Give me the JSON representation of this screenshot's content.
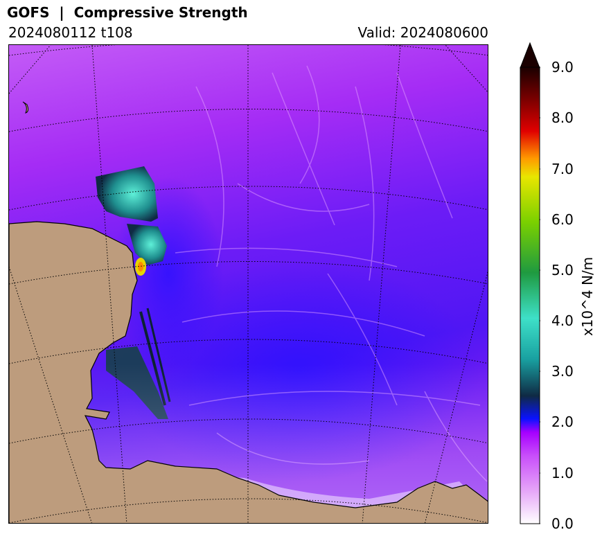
{
  "title": "GOFS  |  Compressive Strength",
  "run": "2024080112 t108",
  "valid": "Valid: 2024080600",
  "colorbar": {
    "label": "x10^4 N/m",
    "ticks": [
      "9.0",
      "8.0",
      "7.0",
      "6.0",
      "5.0",
      "4.0",
      "3.0",
      "2.0",
      "1.0",
      "0.0"
    ],
    "colors": [
      "#ffffff",
      "#e6a8f8",
      "#c84dfa",
      "#a600ff",
      "#0a12ff",
      "#0f2a44",
      "#19a0a0",
      "#3ee0c8",
      "#1f9a40",
      "#7ad000",
      "#e8e600",
      "#ff9a00",
      "#e00000",
      "#7a0000",
      "#1a0000"
    ]
  },
  "map": {
    "ocean_color": "#9a1ff0",
    "land_color": "#bd9c7d"
  }
}
